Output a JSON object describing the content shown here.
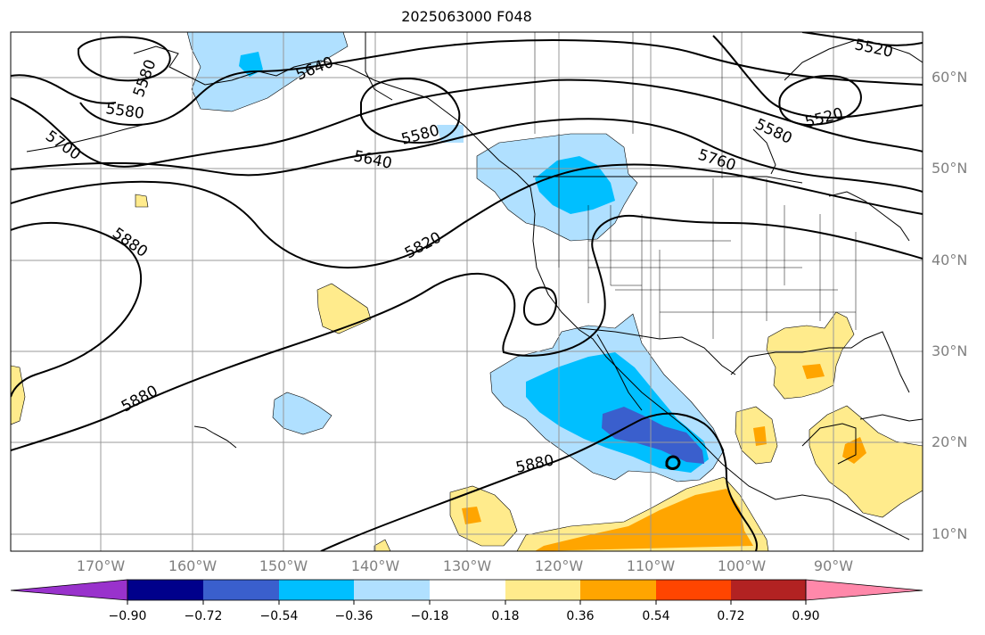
{
  "title": "2025063000 F048",
  "map": {
    "projection": "plate-carree",
    "extent_lon": [
      -180,
      -80
    ],
    "extent_lat": [
      8,
      65
    ],
    "gridlines": true,
    "lon_ticks": [
      "170°W",
      "160°W",
      "150°W",
      "140°W",
      "130°W",
      "120°W",
      "110°W",
      "100°W",
      "90°W"
    ],
    "lat_ticks": [
      "60°N",
      "50°N",
      "40°N",
      "30°N",
      "20°N",
      "10°N"
    ],
    "contour_labels": [
      "5520",
      "5520",
      "5580",
      "5580",
      "5580",
      "5580",
      "5640",
      "5640",
      "5700",
      "5760",
      "5820",
      "5880",
      "5880",
      "5880"
    ],
    "colors": {
      "filled_negative_strong": "#00bfff",
      "filled_negative_weak": "#b0e0ff",
      "filled_negative_stronger": "#3a5fcd",
      "filled_positive_weak": "#ffeb8c",
      "filled_positive_strong": "#ffa500"
    }
  },
  "colorbar": {
    "tick_labels": [
      "−0.90",
      "−0.72",
      "−0.54",
      "−0.36",
      "−0.18",
      "0.18",
      "0.36",
      "0.54",
      "0.72",
      "0.90"
    ],
    "colors": [
      "#9932cc",
      "#00008b",
      "#3a5fcd",
      "#00bfff",
      "#b0e0ff",
      "#ffffff",
      "#ffeb8c",
      "#ffa500",
      "#ff4500",
      "#b22222",
      "#ff88aa"
    ]
  }
}
